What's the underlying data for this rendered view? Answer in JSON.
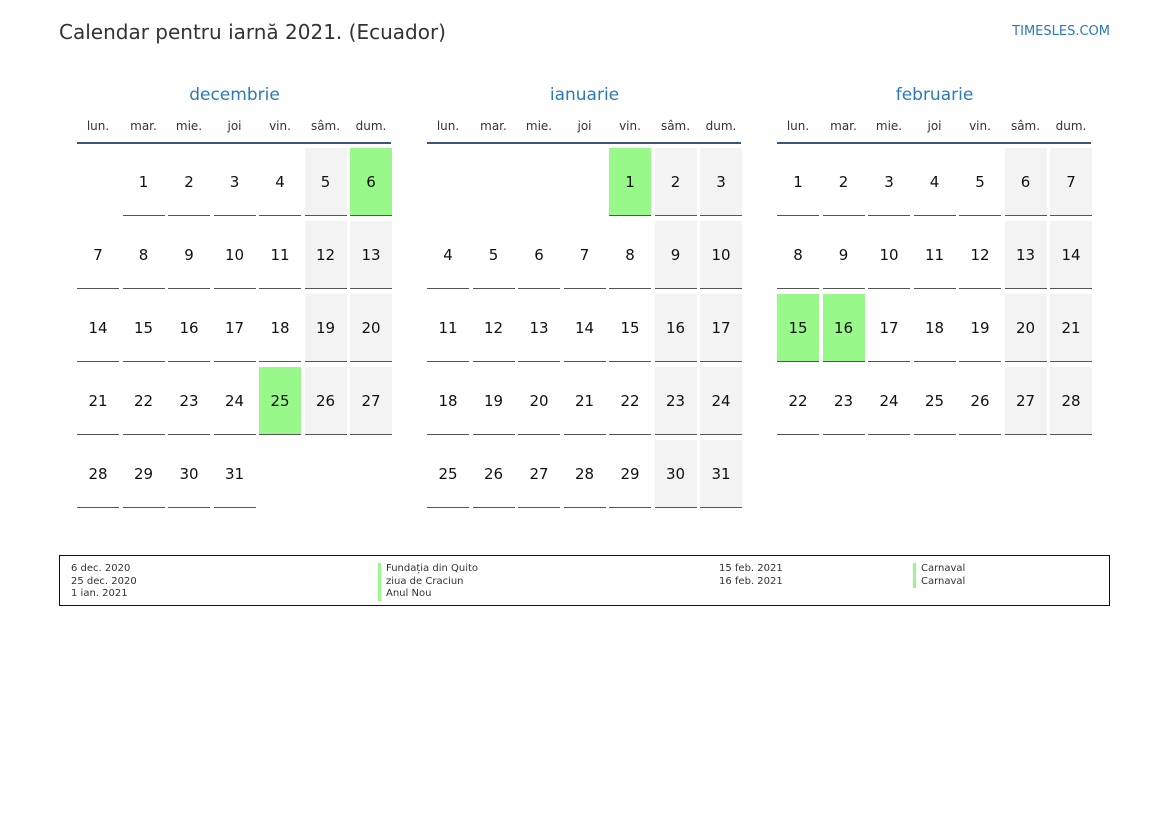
{
  "header": {
    "title": "Calendar pentru iarnă 2021. (Ecuador)",
    "brand": "TIMESLES.COM"
  },
  "weekday_labels": [
    "lun.",
    "mar.",
    "mie.",
    "joi",
    "vin.",
    "sâm.",
    "dum."
  ],
  "months": [
    {
      "name": "decembrie",
      "first_weekday_index": 1,
      "days_in_month": 31,
      "holidays": [
        6,
        25
      ]
    },
    {
      "name": "ianuarie",
      "first_weekday_index": 4,
      "days_in_month": 31,
      "holidays": [
        1
      ]
    },
    {
      "name": "februarie",
      "first_weekday_index": 0,
      "days_in_month": 28,
      "holidays": [
        15,
        16
      ]
    }
  ],
  "legend": {
    "left": [
      {
        "date": "6 dec. 2020",
        "name": "Fundația din Quito"
      },
      {
        "date": "25 dec. 2020",
        "name": "ziua de Craciun"
      },
      {
        "date": "1 ian. 2021",
        "name": "Anul Nou"
      }
    ],
    "right": [
      {
        "date": "15 feb. 2021",
        "name": "Carnaval"
      },
      {
        "date": "16 feb. 2021",
        "name": "Carnaval"
      }
    ]
  },
  "colors": {
    "holiday": "#98f88a",
    "weekend": "#f3f3f3",
    "accent": "#2a7ab8",
    "header_rule": "#3a5575"
  }
}
